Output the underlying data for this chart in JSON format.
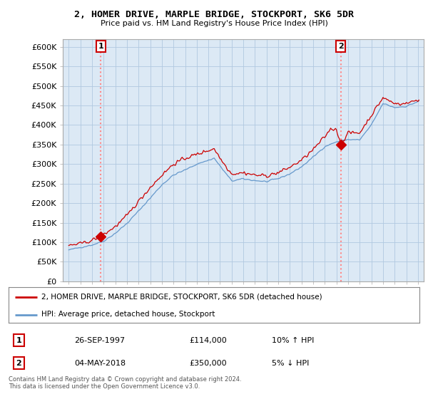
{
  "title": "2, HOMER DRIVE, MARPLE BRIDGE, STOCKPORT, SK6 5DR",
  "subtitle": "Price paid vs. HM Land Registry's House Price Index (HPI)",
  "ylabel_ticks": [
    "£0",
    "£50K",
    "£100K",
    "£150K",
    "£200K",
    "£250K",
    "£300K",
    "£350K",
    "£400K",
    "£450K",
    "£500K",
    "£550K",
    "£600K"
  ],
  "ytick_values": [
    0,
    50000,
    100000,
    150000,
    200000,
    250000,
    300000,
    350000,
    400000,
    450000,
    500000,
    550000,
    600000
  ],
  "xlim": [
    1994.5,
    2025.5
  ],
  "ylim": [
    0,
    620000
  ],
  "sale1_x": 1997.75,
  "sale1_y": 114000,
  "sale1_label": "1",
  "sale2_x": 2018.37,
  "sale2_y": 350000,
  "sale2_label": "2",
  "sale1_date": "26-SEP-1997",
  "sale1_price": "£114,000",
  "sale1_hpi": "10% ↑ HPI",
  "sale2_date": "04-MAY-2018",
  "sale2_price": "£350,000",
  "sale2_hpi": "5% ↓ HPI",
  "legend_line1": "2, HOMER DRIVE, MARPLE BRIDGE, STOCKPORT, SK6 5DR (detached house)",
  "legend_line2": "HPI: Average price, detached house, Stockport",
  "footer": "Contains HM Land Registry data © Crown copyright and database right 2024.\nThis data is licensed under the Open Government Licence v3.0.",
  "line_color_red": "#cc0000",
  "line_color_blue": "#6699cc",
  "marker_color": "#cc0000",
  "dashed_color": "#ff8888",
  "background_chart": "#dce9f5",
  "background_fig": "#ffffff",
  "grid_color": "#b0c8e0"
}
